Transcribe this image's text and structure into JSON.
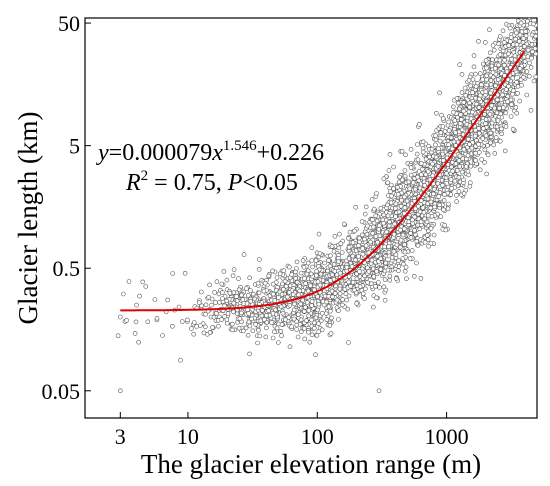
{
  "chart_data": {
    "type": "scatter",
    "title": "",
    "xlabel": "The glacier elevation range (m)",
    "ylabel": "Glacier length (km)",
    "xscale": "log",
    "yscale": "log",
    "xlim": [
      1.6,
      5000
    ],
    "ylim": [
      0.03,
      55
    ],
    "xticks": [
      3,
      10,
      100,
      1000
    ],
    "xtick_labels": [
      "3",
      "10",
      "100",
      "1000"
    ],
    "yticks": [
      0.05,
      0.5,
      5,
      50
    ],
    "ytick_labels": [
      "0.05",
      "0.5",
      "5",
      "50"
    ],
    "grid": false,
    "legend": "none",
    "point_color": "#555555",
    "fit_color": "#e00000",
    "fit": {
      "a": 7.9e-05,
      "b": 1.546,
      "c": 0.226,
      "x_range": [
        3,
        4000
      ]
    },
    "annotation": {
      "equation_y": "y",
      "equation_eq": "=0.000079",
      "equation_x": "x",
      "equation_exp": "1.546",
      "equation_const": "+0.226",
      "r2_R": "R",
      "r2_sup": "2",
      "r2_value": " = 0.75,  ",
      "p_P": "P",
      "p_value": "<0.05"
    },
    "points_sample": [
      [
        3,
        0.05
      ],
      [
        3,
        0.2
      ],
      [
        4,
        0.25
      ],
      [
        15,
        0.15
      ],
      [
        20,
        0.4
      ],
      [
        30,
        0.1
      ],
      [
        50,
        0.3
      ],
      [
        80,
        0.6
      ],
      [
        100,
        0.35
      ],
      [
        200,
        0.8
      ],
      [
        300,
        0.05
      ],
      [
        500,
        2
      ],
      [
        800,
        4
      ],
      [
        1000,
        6
      ],
      [
        2000,
        20
      ],
      [
        3500,
        40
      ]
    ]
  }
}
